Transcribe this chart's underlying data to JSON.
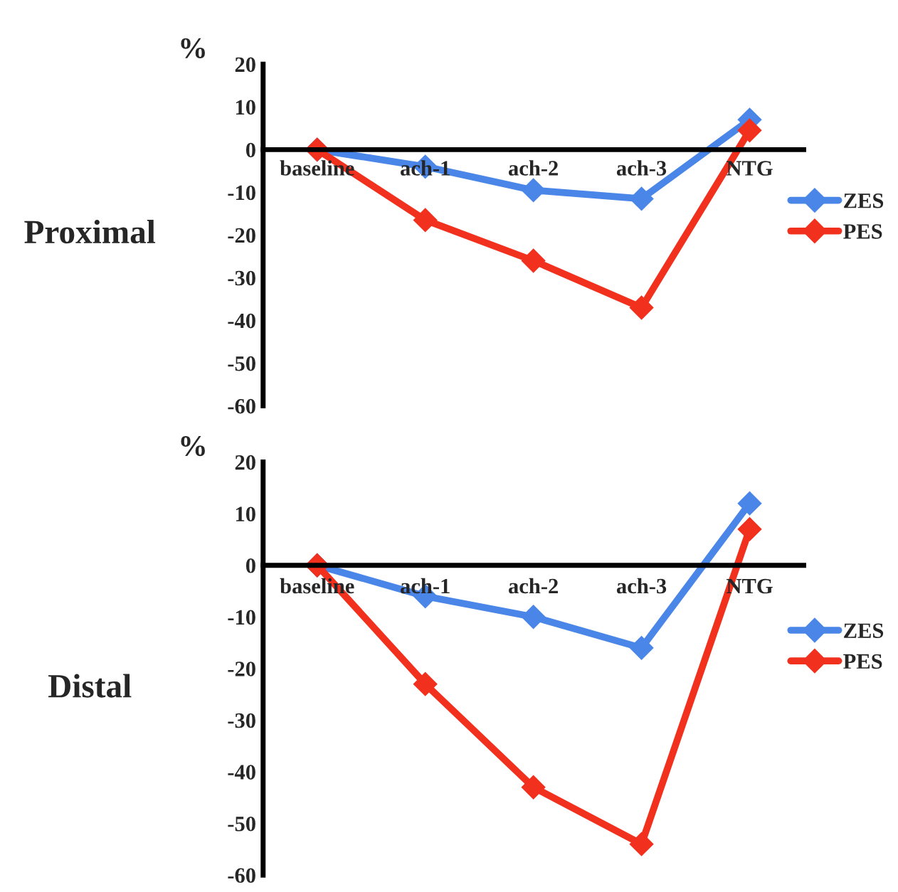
{
  "chart_data": [
    {
      "type": "line",
      "title": "Proximal",
      "ylabel": "%",
      "categories": [
        "baseline",
        "ach-1",
        "ach-2",
        "ach-3",
        "NTG"
      ],
      "ylim": [
        -60,
        20
      ],
      "yticks": [
        -60,
        -50,
        -40,
        -30,
        -20,
        -10,
        0,
        10,
        20
      ],
      "grid": false,
      "legend": "right",
      "marker": "diamond",
      "line_style": "solid",
      "series": [
        {
          "name": "ZES",
          "color": "#4a86e8",
          "values": [
            0,
            -4,
            -9.5,
            -11.5,
            7
          ]
        },
        {
          "name": "PES",
          "color": "#f2301e",
          "values": [
            0,
            -16.5,
            -26,
            -37,
            4.5
          ]
        }
      ]
    },
    {
      "type": "line",
      "title": "Distal",
      "ylabel": "%",
      "categories": [
        "baseline",
        "ach-1",
        "ach-2",
        "ach-3",
        "NTG"
      ],
      "ylim": [
        -60,
        20
      ],
      "yticks": [
        -60,
        -50,
        -40,
        -30,
        -20,
        -10,
        0,
        10,
        20
      ],
      "grid": false,
      "legend": "right",
      "marker": "diamond",
      "line_style": "solid",
      "series": [
        {
          "name": "ZES",
          "color": "#4a86e8",
          "values": [
            0,
            -6,
            -10,
            -16,
            12
          ]
        },
        {
          "name": "PES",
          "color": "#f2301e",
          "values": [
            0,
            -23,
            -43,
            -54,
            7
          ]
        }
      ]
    }
  ]
}
